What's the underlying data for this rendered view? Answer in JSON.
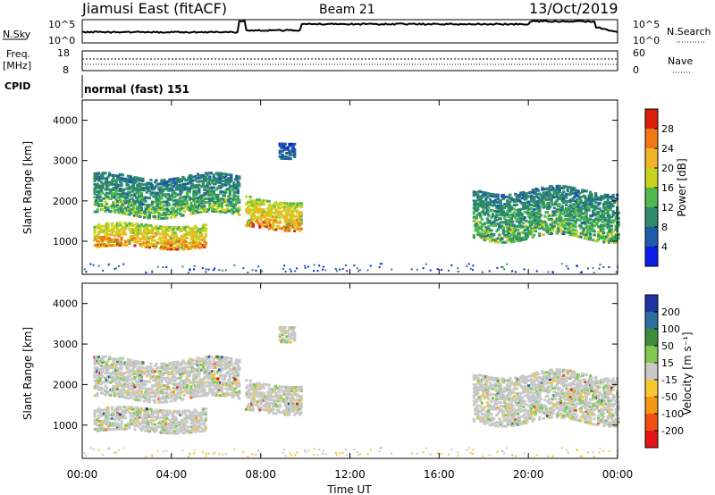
{
  "header": {
    "radar": "Jiamusi East (fitACF)",
    "beam": "Beam 21",
    "date": "13/Oct/2019"
  },
  "nsky_panel": {
    "left_label": "N.Sky",
    "right_label": "N.Search",
    "left_ticks": [
      "10^5",
      "10^0"
    ],
    "right_ticks": [
      "10^5",
      "10^0"
    ]
  },
  "freq_panel": {
    "left_label_top": "Freq.",
    "left_label_unit": "[MHz]",
    "left_ticks": [
      "18",
      "8"
    ],
    "right_ticks": [
      "60",
      "0"
    ],
    "right_label": "Nave"
  },
  "cpid": {
    "label": "CPID",
    "value": "normal (fast) 151"
  },
  "chart_data": [
    {
      "type": "heatmap",
      "title": "Power",
      "ylabel": "Slant Range [km]",
      "y_ticks": [
        "1000",
        "2000",
        "3000",
        "4000"
      ],
      "ylim": [
        180,
        4500
      ],
      "xlim": [
        0,
        24
      ],
      "colorbar_label": "Power [dB]",
      "colorbar_ticks": [
        "4",
        "8",
        "12",
        "16",
        "20",
        "24",
        "28"
      ],
      "colors": [
        "#0a1ee6",
        "#1f5aa8",
        "#2d8a6a",
        "#4fb84f",
        "#c8d21e",
        "#f0b428",
        "#f07814",
        "#dc1e0a"
      ],
      "bands": [
        {
          "t": [
            0.5,
            5.5
          ],
          "range": [
            750,
            1450
          ],
          "level": "high"
        },
        {
          "t": [
            0.5,
            7.0
          ],
          "range": [
            1500,
            2700
          ],
          "level": "mid"
        },
        {
          "t": [
            7.3,
            9.8
          ],
          "range": [
            1200,
            2100
          ],
          "level": "high"
        },
        {
          "t": [
            17.5,
            24.0
          ],
          "range": [
            900,
            2400
          ],
          "level": "mid"
        },
        {
          "t": [
            8.8,
            9.5
          ],
          "range": [
            3000,
            3500
          ],
          "level": "low"
        }
      ]
    },
    {
      "type": "heatmap",
      "title": "Velocity",
      "ylabel": "Slant Range [km]",
      "y_ticks": [
        "1000",
        "2000",
        "3000",
        "4000"
      ],
      "ylim": [
        180,
        4500
      ],
      "xlim": [
        0,
        24
      ],
      "colorbar_label": "Velocity [m s⁻¹]",
      "colorbar_ticks": [
        "200",
        "100",
        "50",
        "15",
        "-15",
        "-50",
        "-100",
        "-200"
      ],
      "colors": [
        "#1e32a0",
        "#2d6ea0",
        "#3c8c3c",
        "#82c850",
        "#c8c8c8",
        "#f5c832",
        "#f59614",
        "#f05014",
        "#e61414"
      ],
      "x_ticks": [
        "00:00",
        "04:00",
        "08:00",
        "12:00",
        "16:00",
        "20:00",
        "00:00"
      ],
      "xlabel": "Time UT"
    }
  ]
}
